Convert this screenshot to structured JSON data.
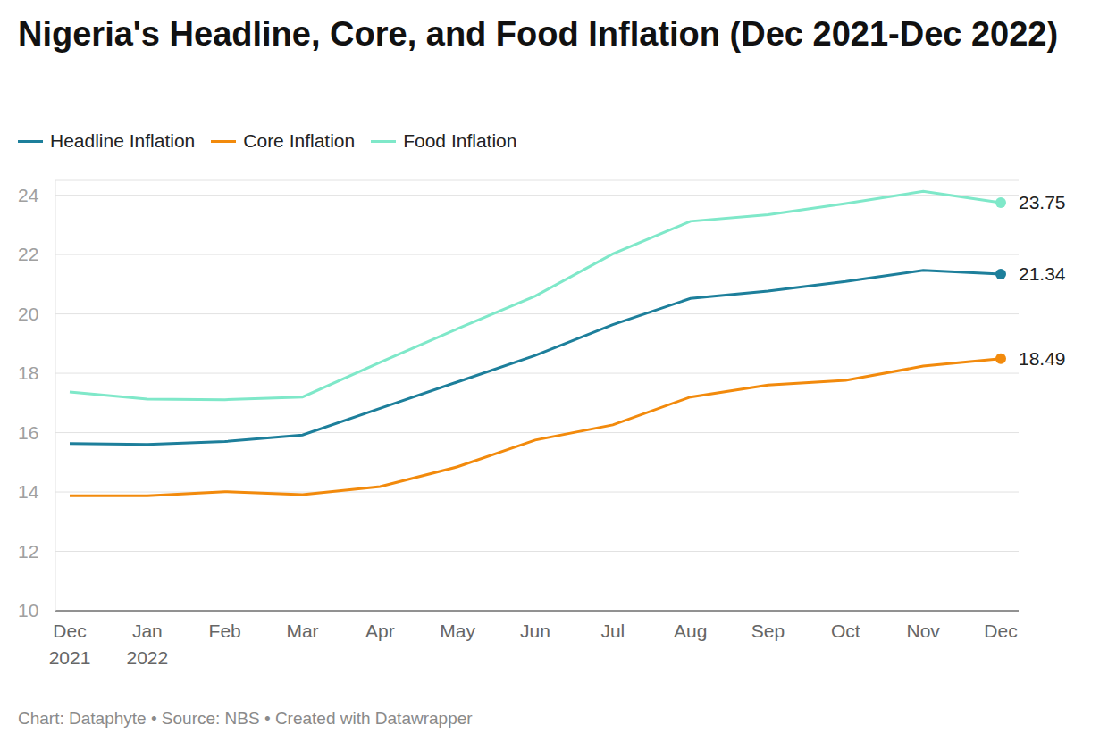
{
  "chart_data": {
    "type": "line",
    "title": "Nigeria's Headline, Core, and Food Inflation (Dec 2021-Dec 2022)",
    "caption": "Chart: Dataphyte • Source: NBS • Created with Datawrapper",
    "categories": [
      "Dec 2021",
      "Jan 2022",
      "Feb",
      "Mar",
      "Apr",
      "May",
      "Jun",
      "Jul",
      "Aug",
      "Sep",
      "Oct",
      "Nov",
      "Dec"
    ],
    "series": [
      {
        "name": "Headline Inflation",
        "color": "#1d7f9b",
        "values": [
          15.63,
          15.6,
          15.7,
          15.92,
          16.82,
          17.71,
          18.6,
          19.64,
          20.52,
          20.77,
          21.09,
          21.47,
          21.34
        ],
        "value_labels": [
          null,
          null,
          null,
          null,
          null,
          null,
          null,
          null,
          null,
          null,
          null,
          null,
          "21.34"
        ]
      },
      {
        "name": "Core Inflation",
        "color": "#f28a0c",
        "values": [
          13.87,
          13.87,
          14.01,
          13.91,
          14.18,
          14.85,
          15.75,
          16.26,
          17.2,
          17.6,
          17.76,
          18.24,
          18.49
        ],
        "value_labels": [
          null,
          null,
          null,
          null,
          null,
          null,
          null,
          null,
          null,
          null,
          null,
          null,
          "18.49"
        ]
      },
      {
        "name": "Food Inflation",
        "color": "#7fe8c9",
        "values": [
          17.37,
          17.13,
          17.11,
          17.2,
          18.37,
          19.5,
          20.6,
          22.02,
          23.12,
          23.34,
          23.72,
          24.13,
          23.75
        ],
        "value_labels": [
          null,
          null,
          null,
          null,
          null,
          null,
          null,
          null,
          null,
          null,
          null,
          null,
          "23.75"
        ]
      }
    ],
    "ylim": [
      10,
      24.5
    ],
    "yticks": [
      10,
      12,
      14,
      16,
      18,
      20,
      22,
      24
    ],
    "grid": true,
    "legend": "top-left",
    "data_labels": true
  }
}
